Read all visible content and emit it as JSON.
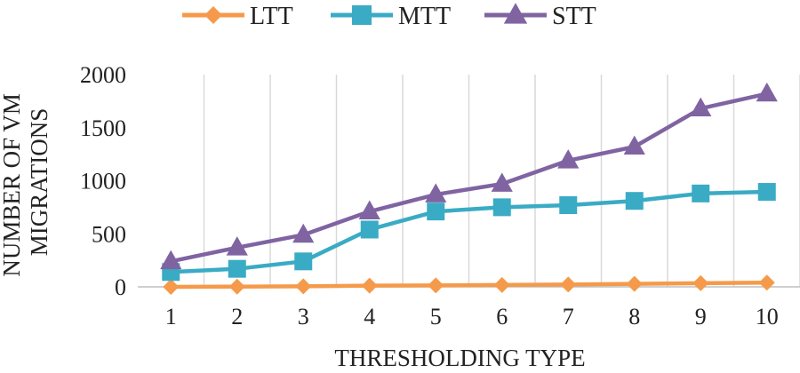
{
  "chart_data": {
    "type": "line",
    "title": "",
    "xlabel": "THRESHOLDING TYPE",
    "ylabel_lines": [
      "NUMBER OF VM",
      "MIGRATIONS"
    ],
    "x": [
      1,
      2,
      3,
      4,
      5,
      6,
      7,
      8,
      9,
      10
    ],
    "x_tick_labels": [
      "1",
      "2",
      "3",
      "4",
      "5",
      "6",
      "7",
      "8",
      "9",
      "10"
    ],
    "ylim": [
      0,
      2000
    ],
    "y_ticks": [
      0,
      500,
      1000,
      1500,
      2000
    ],
    "y_tick_labels": [
      "0",
      "500",
      "1000",
      "1500",
      "2000"
    ],
    "grid": "vertical",
    "legend_position": "top",
    "series": [
      {
        "name": "LTT",
        "color": "#F59A4A",
        "marker": "diamond",
        "values": [
          0,
          2,
          5,
          12,
          14,
          18,
          22,
          28,
          35,
          40
        ]
      },
      {
        "name": "MTT",
        "color": "#3AABC4",
        "marker": "square",
        "values": [
          140,
          170,
          240,
          540,
          710,
          750,
          770,
          810,
          880,
          895
        ]
      },
      {
        "name": "STT",
        "color": "#8064A2",
        "marker": "triangle",
        "values": [
          240,
          370,
          490,
          710,
          870,
          970,
          1190,
          1320,
          1680,
          1820
        ]
      }
    ]
  }
}
